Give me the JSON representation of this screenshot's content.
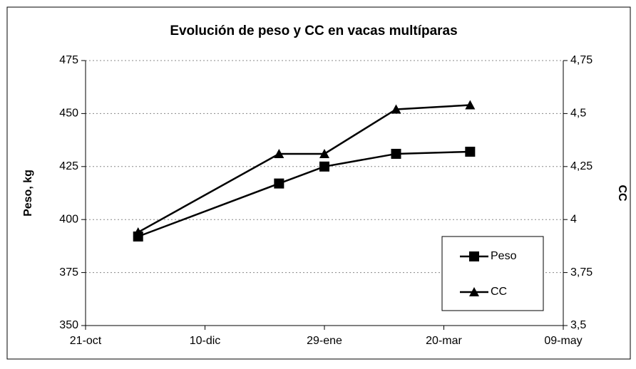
{
  "chart_data": {
    "type": "line",
    "title": "Evolución de peso y CC en vacas multíparas",
    "y_label": "Peso, kg",
    "y2_label": "CC",
    "x": [
      22,
      81,
      100,
      130,
      161
    ],
    "xlim": [
      0,
      200
    ],
    "xticks": [
      {
        "value": 0,
        "label": "21-oct"
      },
      {
        "value": 50,
        "label": "10-dic"
      },
      {
        "value": 100,
        "label": "29-ene"
      },
      {
        "value": 150,
        "label": "20-mar"
      },
      {
        "value": 200,
        "label": "09-may"
      }
    ],
    "ylim": [
      350,
      475
    ],
    "yticks": [
      350,
      375,
      400,
      425,
      450,
      475
    ],
    "y2lim": [
      3.5,
      4.75
    ],
    "y2ticks": [
      {
        "value": 3.5,
        "label": "3,5"
      },
      {
        "value": 3.75,
        "label": "3,75"
      },
      4,
      {
        "value": 4.25,
        "label": "4,25"
      },
      {
        "value": 4.5,
        "label": "4,5"
      },
      {
        "value": 4.75,
        "label": "4,75"
      }
    ],
    "grid": true,
    "legend": "lower right",
    "series": [
      {
        "name": "Peso",
        "color": "#000000",
        "marker": "square",
        "values": [
          392,
          417,
          425,
          431,
          432
        ]
      },
      {
        "name": "CC",
        "color": "#000000",
        "marker": "triangle",
        "axis": "y2",
        "values": [
          3.94,
          4.31,
          4.31,
          4.52,
          4.54
        ]
      }
    ]
  }
}
